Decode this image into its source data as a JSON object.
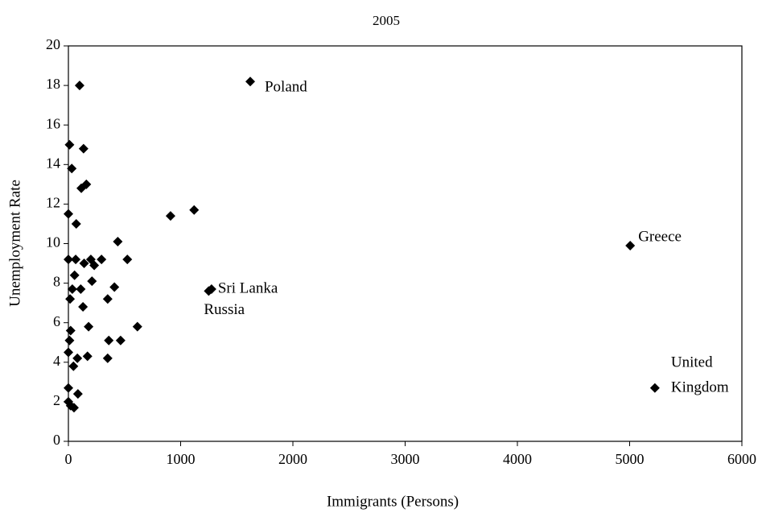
{
  "chart_data": {
    "type": "scatter",
    "title": "2005",
    "x_label": "Immigrants (Persons)",
    "y_label": "Unemployment Rate",
    "xlim": [
      0,
      6000
    ],
    "ylim": [
      0,
      20
    ],
    "xticks": [
      0,
      1000,
      2000,
      3000,
      4000,
      5000,
      6000
    ],
    "yticks": [
      0,
      2,
      4,
      6,
      8,
      10,
      12,
      14,
      16,
      18,
      20
    ],
    "color": "#000000",
    "grid": false,
    "x": [
      100,
      1620,
      10,
      135,
      30,
      160,
      115,
      0,
      70,
      910,
      1120,
      5005,
      440,
      0,
      65,
      140,
      200,
      230,
      295,
      525,
      55,
      210,
      410,
      35,
      110,
      15,
      350,
      1275,
      1250,
      130,
      20,
      180,
      615,
      10,
      360,
      465,
      0,
      80,
      170,
      350,
      45,
      5225,
      0,
      85,
      0,
      20,
      50
    ],
    "y": [
      18.0,
      18.2,
      15.0,
      14.8,
      13.8,
      13.0,
      12.8,
      11.5,
      11.0,
      11.4,
      11.7,
      9.9,
      10.1,
      9.2,
      9.2,
      9.0,
      9.2,
      8.9,
      9.2,
      9.2,
      8.4,
      8.1,
      7.8,
      7.7,
      7.7,
      7.2,
      7.2,
      7.7,
      7.6,
      6.8,
      5.6,
      5.8,
      5.8,
      5.1,
      5.1,
      5.1,
      4.5,
      4.2,
      4.3,
      4.2,
      3.8,
      2.7,
      2.7,
      2.4,
      2.0,
      1.8,
      1.7
    ],
    "point_labels": [
      null,
      "Poland",
      null,
      null,
      null,
      null,
      null,
      null,
      null,
      null,
      null,
      "Greece",
      null,
      null,
      null,
      null,
      null,
      null,
      null,
      null,
      null,
      null,
      null,
      null,
      null,
      null,
      null,
      "Sri Lanka",
      "Russia",
      null,
      null,
      null,
      null,
      null,
      null,
      null,
      null,
      null,
      null,
      null,
      null,
      "United Kingdom",
      null,
      null,
      null,
      null,
      null
    ]
  }
}
